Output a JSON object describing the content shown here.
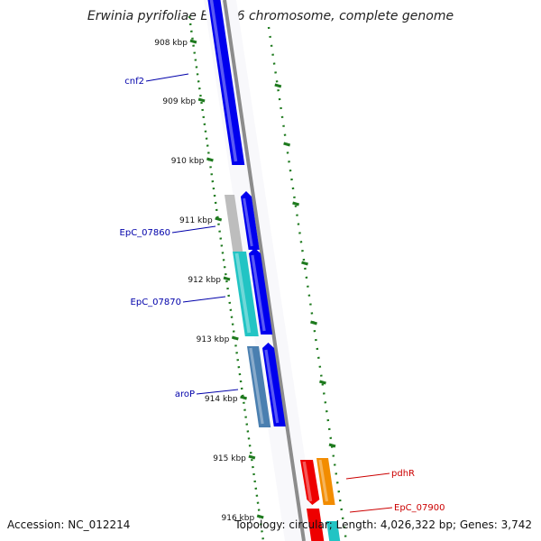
{
  "title": "Erwinia pyrifoliae Ep1/96 chromosome, complete genome",
  "footer": {
    "accession": "Accession: NC_012214",
    "topology": "Topology: circular; Length: 4,026,322 bp; Genes: 3,742"
  },
  "ticks": [
    "908 kbp",
    "909 kbp",
    "910 kbp",
    "911 kbp",
    "912 kbp",
    "913 kbp",
    "914 kbp",
    "915 kbp",
    "916 kbp"
  ],
  "gene_labels": [
    {
      "text": "cnf2",
      "color": "#0000aa"
    },
    {
      "text": "EpC_07860",
      "color": "#0000aa"
    },
    {
      "text": "EpC_07870",
      "color": "#0000aa"
    },
    {
      "text": "aroP",
      "color": "#0000aa"
    },
    {
      "text": "pdhR",
      "color": "#cc0000"
    },
    {
      "text": "EpC_07900",
      "color": "#cc0000"
    }
  ],
  "colors": {
    "backbone": "#8c8c8c",
    "tick_green": "#1e7a1e",
    "blue": "#0000ee",
    "cyan": "#22c4c4",
    "steel": "#4a7fb0",
    "grey_gene": "#bdbdbd",
    "red": "#ee0000",
    "orange": "#f28c00"
  }
}
